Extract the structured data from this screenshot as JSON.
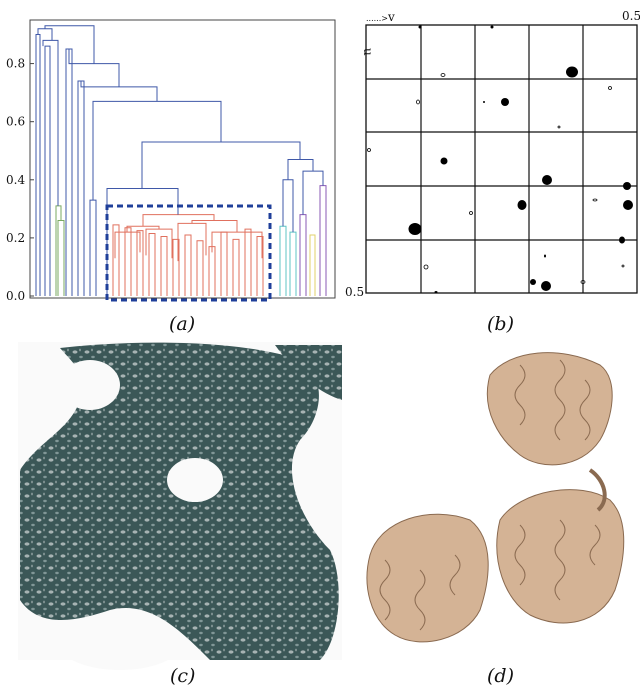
{
  "figure": {
    "panels": [
      {
        "caption": "(a)"
      },
      {
        "caption": "(b)",
        "corner_top_right": "0.5",
        "corner_bottom_left": "0.5",
        "axis_u": "u",
        "axis_v": "v"
      },
      {
        "caption": "(c)"
      },
      {
        "caption": "(d)"
      }
    ]
  },
  "colors": {
    "dendro_blue": "#3f58a8",
    "dendro_red": "#e0705e",
    "dendro_green": "#7aa862",
    "dendro_cyan": "#5fc6c6",
    "dendro_purple": "#8a5ab5",
    "dendro_yellow": "#e0d26a",
    "box_dash": "#1f3f9a",
    "density": "#3b5757",
    "protein": "#d4b395"
  },
  "chart_data": {
    "type": "dendrogram",
    "ylim": [
      0.0,
      0.95
    ],
    "yticks": [
      "0.0",
      "0.2",
      "0.4",
      "0.6",
      "0.8"
    ],
    "highlighted_cluster_max_height": 0.25,
    "annotation": "dashed box around highlighted cluster"
  }
}
